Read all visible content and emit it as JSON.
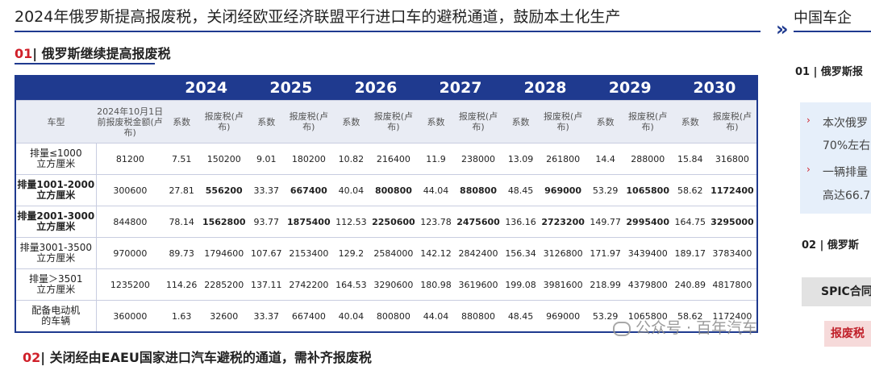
{
  "header": {
    "title": "2024年俄罗斯提高报废税，关闭经欧亚经济联盟平行进口车的避税通道，鼓励本土化生产"
  },
  "section1": {
    "number": "01",
    "title": "| 俄罗斯继续提高报废税"
  },
  "table": {
    "years": [
      2024,
      2025,
      2026,
      2027,
      2028,
      2029,
      2030
    ],
    "columns": [
      "车型",
      "2024年10月1日前报废税金额(卢布)",
      "系数",
      "报废税(卢布)"
    ],
    "rows": [
      [
        "排量≤1000\n立方厘米",
        81200,
        7.51,
        150200,
        9.01,
        180200,
        10.82,
        216400,
        11.9,
        238000,
        13.09,
        261800,
        14.4,
        288000,
        15.84,
        316800
      ],
      [
        "排量1001-2000\n立方厘米",
        300600,
        27.81,
        556200,
        33.37,
        667400,
        40.04,
        800800,
        44.04,
        880800,
        48.45,
        969000,
        53.29,
        1065800,
        58.62,
        1172400
      ],
      [
        "排量2001-3000\n立方厘米",
        844800,
        78.14,
        1562800,
        93.77,
        1875400,
        112.53,
        2250600,
        123.78,
        2475600,
        136.16,
        2723200,
        149.77,
        2995400,
        164.75,
        3295000
      ],
      [
        "排量3001-3500\n立方厘米",
        970000,
        89.73,
        1794600,
        107.67,
        2153400,
        129.2,
        2584000,
        142.12,
        2842400,
        156.34,
        3126800,
        171.97,
        3439400,
        189.17,
        3783400
      ],
      [
        "排量＞3501\n立方厘米",
        1235200,
        114.26,
        2285200,
        137.11,
        2742200,
        164.53,
        3290600,
        180.98,
        3619600,
        199.08,
        3981600,
        218.99,
        4379800,
        240.89,
        4817800
      ],
      [
        "配备电动机\n的车辆",
        360000,
        1.63,
        32600,
        33.37,
        667400,
        40.04,
        800800,
        44.04,
        880800,
        48.45,
        969000,
        53.29,
        1065800,
        58.62,
        1172400
      ]
    ]
  },
  "section2": {
    "number": "02",
    "title": "| 关闭经由EAEU国家进口汽车避税的通道，需补齐报废税"
  },
  "watermark": "公众号 · 百年汽车",
  "side": {
    "title": "中国车企",
    "heading1": "01 | 俄罗斯报",
    "bullets": [
      "本次俄罗",
      "70%左右",
      "一辆排量",
      "高达66.7"
    ],
    "heading2": "02 | 俄罗斯",
    "box1": "SPIC合同",
    "box2": "报废税"
  }
}
